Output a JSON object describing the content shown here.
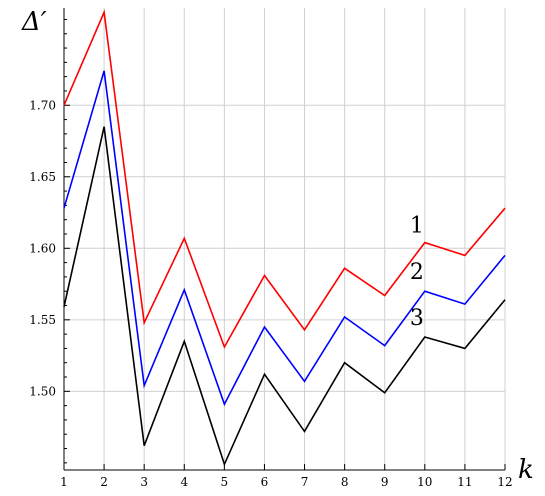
{
  "chart_data": {
    "type": "line",
    "xlabel": "k",
    "ylabel": "Δ′",
    "x": [
      1,
      2,
      3,
      4,
      5,
      6,
      7,
      8,
      9,
      10,
      11,
      12
    ],
    "xlim": [
      1,
      12
    ],
    "ylim": [
      1.445,
      1.768
    ],
    "x_ticks": [
      "1",
      "2",
      "3",
      "4",
      "5",
      "6",
      "7",
      "8",
      "9",
      "10",
      "11",
      "12"
    ],
    "y_ticks": [
      1.5,
      1.55,
      1.6,
      1.65,
      1.7
    ],
    "y_tick_labels": [
      "1.50",
      "1.55",
      "1.60",
      "1.65",
      "1.70"
    ],
    "grid": true,
    "series": [
      {
        "name": "1",
        "color": "#ff0000",
        "values": [
          1.7,
          1.765,
          1.548,
          1.607,
          1.531,
          1.581,
          1.543,
          1.586,
          1.567,
          1.604,
          1.595,
          1.628
        ]
      },
      {
        "name": "2",
        "color": "#0000ff",
        "values": [
          1.628,
          1.724,
          1.504,
          1.571,
          1.491,
          1.545,
          1.507,
          1.552,
          1.532,
          1.57,
          1.561,
          1.595
        ]
      },
      {
        "name": "3",
        "color": "#000000",
        "values": [
          1.559,
          1.685,
          1.462,
          1.535,
          1.449,
          1.512,
          1.472,
          1.52,
          1.499,
          1.538,
          1.53,
          1.564
        ]
      }
    ]
  }
}
